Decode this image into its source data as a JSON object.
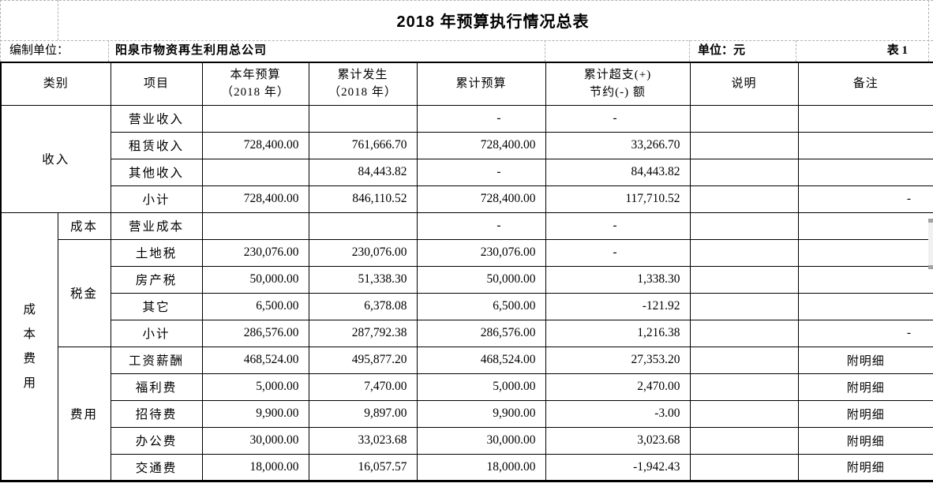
{
  "page": {
    "title": "2018 年预算执行情况总表",
    "prepared_by_label": "编制单位：",
    "prepared_by": "阳泉市物资再生利用总公司",
    "unit_label": "单位：元",
    "sheet_label": "表 1"
  },
  "colors": {
    "text": "#000000",
    "grid_border": "#000000",
    "page_break_dash": "#b3b3b3",
    "scrollbar_track": "#f0f0f0",
    "scrollbar_caps": "#a3a3a3",
    "background": "#ffffff"
  },
  "table": {
    "headers": [
      {
        "t": "类别",
        "cs": 2
      },
      {
        "t": "项目"
      },
      {
        "t": "本年预算\n（2018 年）"
      },
      {
        "t": "累计发生\n（2018 年）"
      },
      {
        "t": "累计预算"
      },
      {
        "t": "累计超支(+)\n节约(-) 额"
      },
      {
        "t": "说明"
      },
      {
        "t": "备注"
      }
    ],
    "rows": [
      {
        "cells": [
          {
            "t": "收入",
            "k": "group",
            "rs": 4,
            "cs": 2
          },
          {
            "t": "营业收入",
            "k": "item"
          },
          {
            "t": "",
            "k": "blank"
          },
          {
            "t": "",
            "k": "blank"
          },
          {
            "t": "-",
            "k": "dash"
          },
          {
            "t": "-",
            "k": "dash"
          },
          {
            "t": "",
            "k": "blank"
          },
          {
            "t": "",
            "k": "blank"
          }
        ]
      },
      {
        "cells": [
          {
            "t": "租赁收入",
            "k": "item"
          },
          {
            "t": "728,400.00",
            "k": "num"
          },
          {
            "t": "761,666.70",
            "k": "num"
          },
          {
            "t": "728,400.00",
            "k": "num"
          },
          {
            "t": "33,266.70",
            "k": "num"
          },
          {
            "t": "",
            "k": "blank"
          },
          {
            "t": "",
            "k": "blank"
          }
        ]
      },
      {
        "cells": [
          {
            "t": "其他收入",
            "k": "item"
          },
          {
            "t": "",
            "k": "blank"
          },
          {
            "t": "84,443.82",
            "k": "num"
          },
          {
            "t": "-",
            "k": "dash"
          },
          {
            "t": "84,443.82",
            "k": "num"
          },
          {
            "t": "",
            "k": "blank"
          },
          {
            "t": "",
            "k": "blank"
          }
        ]
      },
      {
        "cells": [
          {
            "t": "小计",
            "k": "item"
          },
          {
            "t": "728,400.00",
            "k": "num"
          },
          {
            "t": "846,110.52",
            "k": "num"
          },
          {
            "t": "728,400.00",
            "k": "num"
          },
          {
            "t": "117,710.52",
            "k": "num"
          },
          {
            "t": "",
            "k": "blank"
          },
          {
            "t": "-",
            "k": "dash"
          }
        ]
      },
      {
        "cells": [
          {
            "t": "成本费用",
            "k": "vgroup",
            "rs": 10
          },
          {
            "t": "成本",
            "k": "sub"
          },
          {
            "t": "营业成本",
            "k": "item"
          },
          {
            "t": "",
            "k": "blank"
          },
          {
            "t": "",
            "k": "blank"
          },
          {
            "t": "-",
            "k": "dash"
          },
          {
            "t": "-",
            "k": "dash"
          },
          {
            "t": "",
            "k": "blank"
          },
          {
            "t": "",
            "k": "blank"
          }
        ]
      },
      {
        "cells": [
          {
            "t": "税金",
            "k": "sub",
            "rs": 4
          },
          {
            "t": "土地税",
            "k": "item"
          },
          {
            "t": "230,076.00",
            "k": "num"
          },
          {
            "t": "230,076.00",
            "k": "num"
          },
          {
            "t": "230,076.00",
            "k": "num"
          },
          {
            "t": "-",
            "k": "dash"
          },
          {
            "t": "",
            "k": "blank"
          },
          {
            "t": "",
            "k": "blank"
          }
        ]
      },
      {
        "cells": [
          {
            "t": "房产税",
            "k": "item"
          },
          {
            "t": "50,000.00",
            "k": "num"
          },
          {
            "t": "51,338.30",
            "k": "num"
          },
          {
            "t": "50,000.00",
            "k": "num"
          },
          {
            "t": "1,338.30",
            "k": "num"
          },
          {
            "t": "",
            "k": "blank"
          },
          {
            "t": "",
            "k": "blank"
          }
        ]
      },
      {
        "cells": [
          {
            "t": "其它",
            "k": "item"
          },
          {
            "t": "6,500.00",
            "k": "num"
          },
          {
            "t": "6,378.08",
            "k": "num"
          },
          {
            "t": "6,500.00",
            "k": "num"
          },
          {
            "t": "-121.92",
            "k": "num"
          },
          {
            "t": "",
            "k": "blank"
          },
          {
            "t": "",
            "k": "blank"
          }
        ]
      },
      {
        "cells": [
          {
            "t": "小计",
            "k": "item"
          },
          {
            "t": "286,576.00",
            "k": "num"
          },
          {
            "t": "287,792.38",
            "k": "num"
          },
          {
            "t": "286,576.00",
            "k": "num"
          },
          {
            "t": "1,216.38",
            "k": "num"
          },
          {
            "t": "",
            "k": "blank"
          },
          {
            "t": "-",
            "k": "dash"
          }
        ]
      },
      {
        "cells": [
          {
            "t": "费用",
            "k": "sub",
            "rs": 5
          },
          {
            "t": "工资薪酬",
            "k": "item"
          },
          {
            "t": "468,524.00",
            "k": "num"
          },
          {
            "t": "495,877.20",
            "k": "num"
          },
          {
            "t": "468,524.00",
            "k": "num"
          },
          {
            "t": "27,353.20",
            "k": "num"
          },
          {
            "t": "",
            "k": "blank"
          },
          {
            "t": "附明细",
            "k": "note"
          }
        ]
      },
      {
        "cells": [
          {
            "t": "福利费",
            "k": "item"
          },
          {
            "t": "5,000.00",
            "k": "num"
          },
          {
            "t": "7,470.00",
            "k": "num"
          },
          {
            "t": "5,000.00",
            "k": "num"
          },
          {
            "t": "2,470.00",
            "k": "num"
          },
          {
            "t": "",
            "k": "blank"
          },
          {
            "t": "附明细",
            "k": "note"
          }
        ]
      },
      {
        "cells": [
          {
            "t": "招待费",
            "k": "item"
          },
          {
            "t": "9,900.00",
            "k": "num"
          },
          {
            "t": "9,897.00",
            "k": "num"
          },
          {
            "t": "9,900.00",
            "k": "num"
          },
          {
            "t": "-3.00",
            "k": "num"
          },
          {
            "t": "",
            "k": "blank"
          },
          {
            "t": "附明细",
            "k": "note"
          }
        ]
      },
      {
        "cells": [
          {
            "t": "办公费",
            "k": "item"
          },
          {
            "t": "30,000.00",
            "k": "num"
          },
          {
            "t": "33,023.68",
            "k": "num"
          },
          {
            "t": "30,000.00",
            "k": "num"
          },
          {
            "t": "3,023.68",
            "k": "num"
          },
          {
            "t": "",
            "k": "blank"
          },
          {
            "t": "附明细",
            "k": "note"
          }
        ]
      },
      {
        "cells": [
          {
            "t": "交通费",
            "k": "item"
          },
          {
            "t": "18,000.00",
            "k": "num"
          },
          {
            "t": "16,057.57",
            "k": "num"
          },
          {
            "t": "18,000.00",
            "k": "num"
          },
          {
            "t": "-1,942.43",
            "k": "num"
          },
          {
            "t": "",
            "k": "blank"
          },
          {
            "t": "附明细",
            "k": "note"
          }
        ]
      }
    ]
  }
}
